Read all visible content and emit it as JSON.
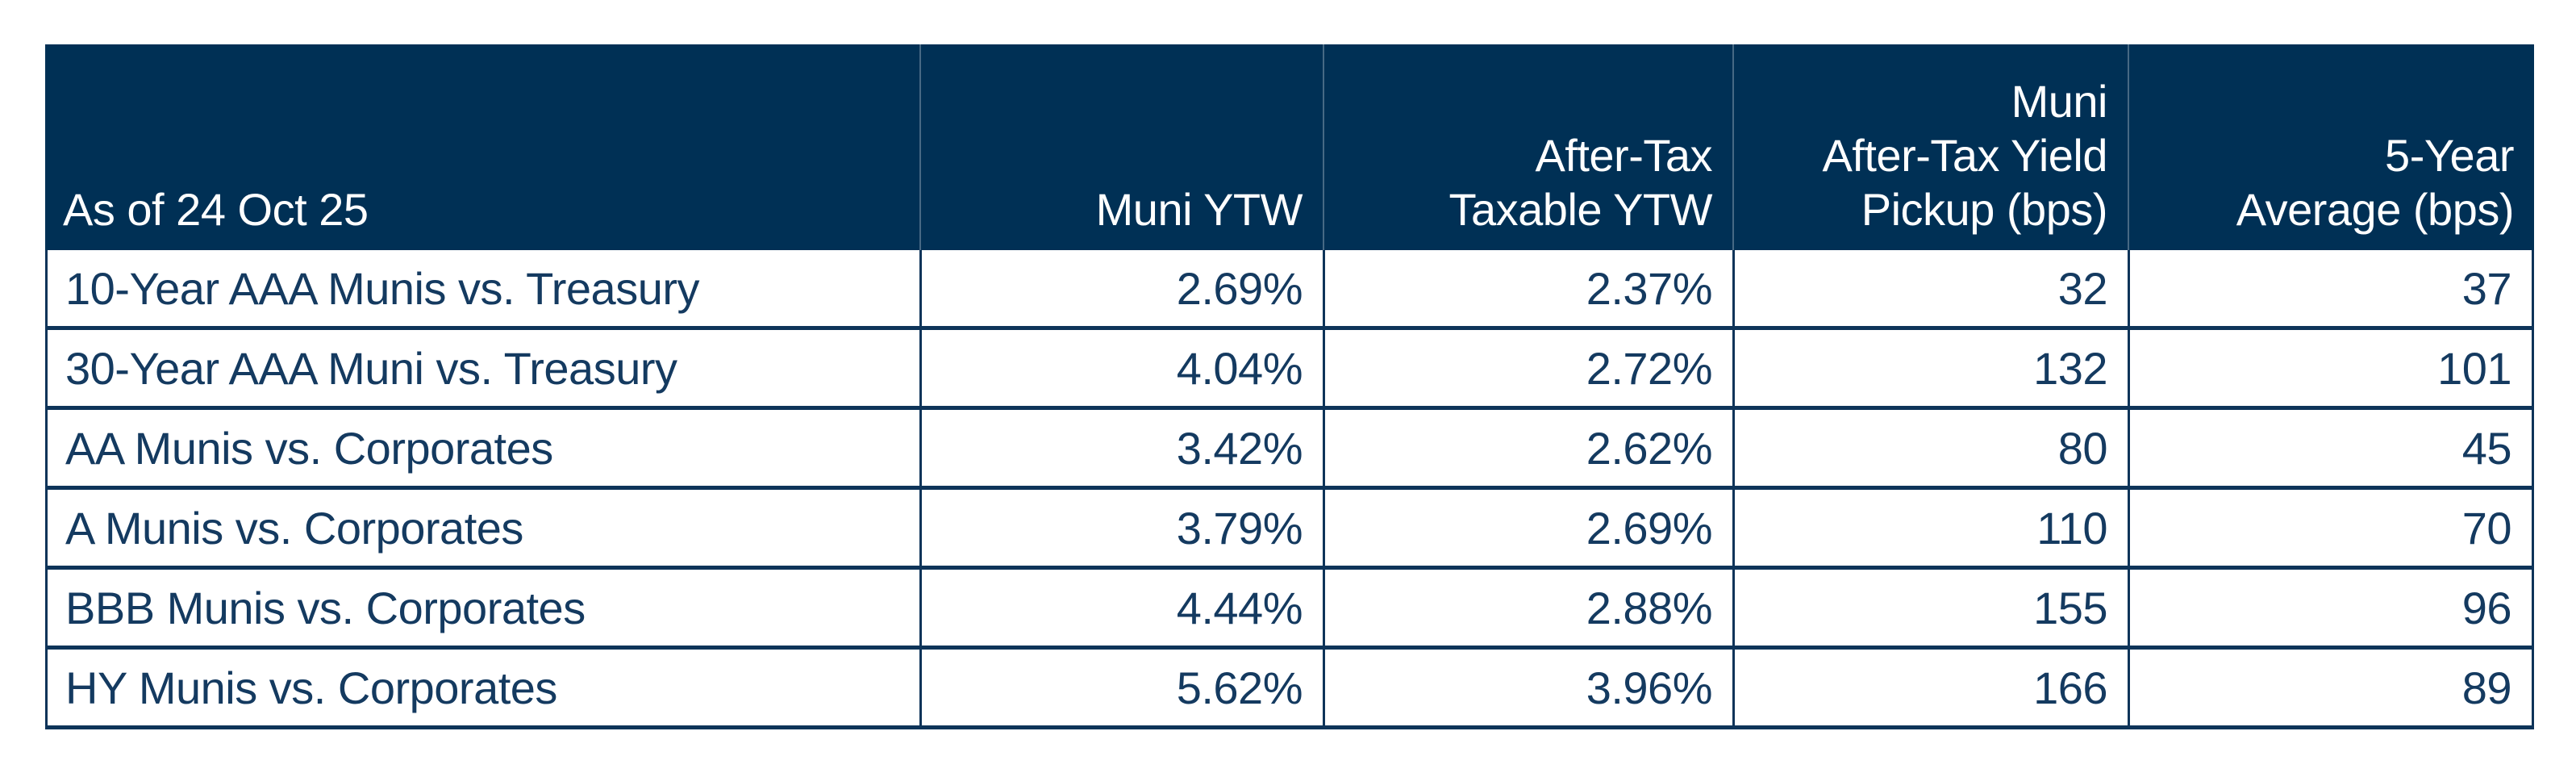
{
  "colors": {
    "header_bg": "#003055",
    "header_text": "#ffffff",
    "body_text": "#143a60",
    "border": "#0e3459"
  },
  "chart_data": {
    "type": "table",
    "as_of_label": "As of 24 Oct 25",
    "columns": [
      "As of 24 Oct 25",
      "Muni YTW",
      "After-Tax Taxable YTW",
      "Muni After-Tax Yield Pickup (bps)",
      "5-Year Average (bps)"
    ],
    "column_display": {
      "c0": "As of 24 Oct 25",
      "c1": "Muni YTW",
      "c2": "After-Tax\nTaxable YTW",
      "c3": "Muni\nAfter-Tax Yield\nPickup (bps)",
      "c4": "5-Year\nAverage (bps)"
    },
    "rows": [
      {
        "label": "10-Year AAA Munis vs. Treasury",
        "muni_ytw": "2.69%",
        "after_tax_taxable_ytw": "2.37%",
        "muni_after_tax_yield_pickup_bps": "32",
        "five_year_average_bps": "37"
      },
      {
        "label": "30-Year AAA Muni vs. Treasury",
        "muni_ytw": "4.04%",
        "after_tax_taxable_ytw": "2.72%",
        "muni_after_tax_yield_pickup_bps": "132",
        "five_year_average_bps": "101"
      },
      {
        "label": "AA Munis vs. Corporates",
        "muni_ytw": "3.42%",
        "after_tax_taxable_ytw": "2.62%",
        "muni_after_tax_yield_pickup_bps": "80",
        "five_year_average_bps": "45"
      },
      {
        "label": "A Munis vs. Corporates",
        "muni_ytw": "3.79%",
        "after_tax_taxable_ytw": "2.69%",
        "muni_after_tax_yield_pickup_bps": "110",
        "five_year_average_bps": "70"
      },
      {
        "label": "BBB Munis vs. Corporates",
        "muni_ytw": "4.44%",
        "after_tax_taxable_ytw": "2.88%",
        "muni_after_tax_yield_pickup_bps": "155",
        "five_year_average_bps": "96"
      },
      {
        "label": "HY Munis vs. Corporates",
        "muni_ytw": "5.62%",
        "after_tax_taxable_ytw": "3.96%",
        "muni_after_tax_yield_pickup_bps": "166",
        "five_year_average_bps": "89"
      }
    ]
  }
}
